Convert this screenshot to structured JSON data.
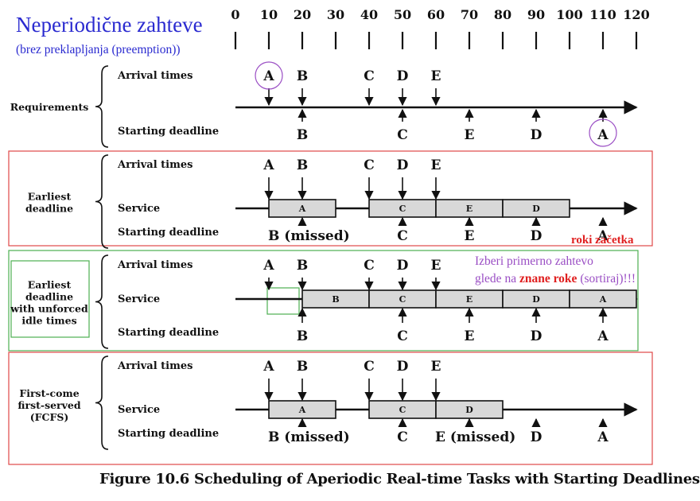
{
  "title": {
    "main": "Neperiodične zahteve",
    "sub": "(brez preklapljanja (preemption))"
  },
  "time_axis": {
    "ticks": [
      "0",
      "10",
      "20",
      "30",
      "40",
      "50",
      "60",
      "70",
      "80",
      "90",
      "100",
      "110",
      "120"
    ]
  },
  "row_labels": {
    "arrival": "Arrival times",
    "service": "Service",
    "deadline": "Starting deadline"
  },
  "groups": [
    {
      "label": [
        "Requirements"
      ],
      "color": "#000000"
    },
    {
      "label": [
        "Earliest",
        "deadline"
      ],
      "color": "#e04848"
    },
    {
      "label": [
        "Earliest",
        "deadline",
        "with unforced",
        "idle times"
      ],
      "color": "#4caf50"
    },
    {
      "label": [
        "First-come",
        "first-served",
        "(FCFS)"
      ],
      "color": "#e04848"
    }
  ],
  "tasks": [
    {
      "name": "A",
      "arrival": 10,
      "deadline": 110
    },
    {
      "name": "B",
      "arrival": 20,
      "deadline": 20
    },
    {
      "name": "C",
      "arrival": 40,
      "deadline": 50
    },
    {
      "name": "D",
      "arrival": 50,
      "deadline": 90
    },
    {
      "name": "E",
      "arrival": 60,
      "deadline": 70
    }
  ],
  "deadline_text": {
    "earliest": {
      "B": "B (missed)",
      "C": "C",
      "E": "E",
      "D": "D",
      "A": "A"
    },
    "unforced": {
      "B": "B",
      "C": "C",
      "E": "E",
      "D": "D",
      "A": "A"
    },
    "fcfs": {
      "B": "B (missed)",
      "C": "C",
      "E": "E (missed)",
      "D": "D",
      "A": "A"
    }
  },
  "service": {
    "earliest": [
      {
        "task": "A",
        "start": 10,
        "end": 30
      },
      {
        "task": "C",
        "start": 40,
        "end": 60
      },
      {
        "task": "E",
        "start": 60,
        "end": 80
      },
      {
        "task": "D",
        "start": 80,
        "end": 100
      }
    ],
    "unforced": [
      {
        "task": "B",
        "start": 20,
        "end": 40
      },
      {
        "task": "C",
        "start": 40,
        "end": 60
      },
      {
        "task": "E",
        "start": 60,
        "end": 80
      },
      {
        "task": "D",
        "start": 80,
        "end": 100
      },
      {
        "task": "A",
        "start": 100,
        "end": 120
      }
    ],
    "fcfs": [
      {
        "task": "A",
        "start": 10,
        "end": 30
      },
      {
        "task": "C",
        "start": 40,
        "end": 60
      },
      {
        "task": "D",
        "start": 60,
        "end": 80
      }
    ]
  },
  "notes": {
    "deadlines": "roki začetka",
    "line1": "Izberi primerno zahtevo",
    "line2_pre": "glede na ",
    "line2_hl": "znane roke",
    "line2_post": " (sortiraj)!!!"
  },
  "caption": "Figure 10.6   Scheduling of Aperiodic Real-time Tasks with Starting Deadlines",
  "colors": {
    "title": "#2a2ad0",
    "note_purple": "#9a4ec4",
    "note_red": "#e02020",
    "box_red": "#e04848",
    "box_green": "#4caf50",
    "service_fill": "#d8d8d8"
  }
}
